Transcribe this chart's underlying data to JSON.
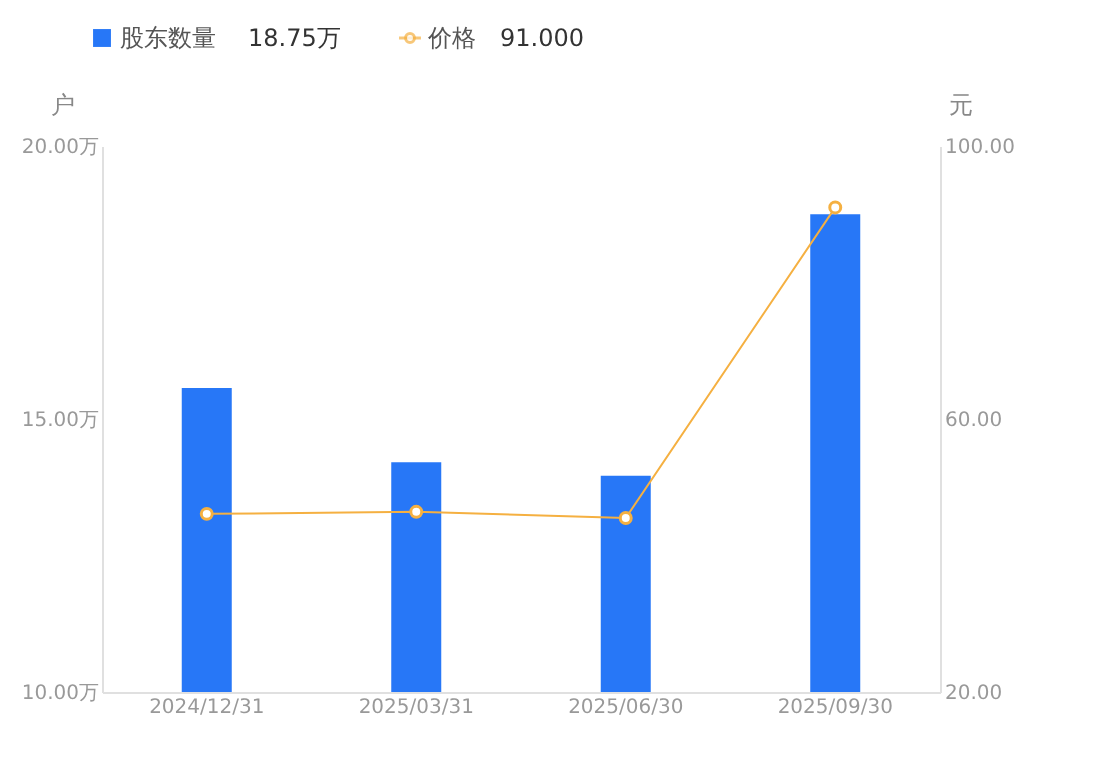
{
  "chart_data": {
    "type": "bar",
    "categories": [
      "2024/12/31",
      "2025/03/31",
      "2025/06/30",
      "2025/09/30"
    ],
    "series": [
      {
        "name": "股东数量",
        "color": "#2777f7",
        "values": [
          15.57,
          14.21,
          13.96,
          18.75
        ]
      },
      {
        "name": "价格",
        "type": "line",
        "axis": "y2",
        "color": "#f5b041",
        "values": [
          46.1,
          46.4,
          45.5,
          91.0
        ]
      }
    ],
    "annotations": [
      "18.75万",
      "91.000"
    ],
    "marker": "circle",
    "ylabel": "户",
    "y2label": "元",
    "ylim": [
      10,
      20
    ],
    "yticks": [
      {
        "value": 10,
        "label": "10.00万"
      },
      {
        "value": 15,
        "label": "15.00万"
      },
      {
        "value": 20,
        "label": "20.00万"
      }
    ],
    "y2lim": [
      20,
      100
    ],
    "y2ticks": [
      {
        "value": 20,
        "label": "20.00"
      },
      {
        "value": 60,
        "label": "60.00"
      },
      {
        "value": 100,
        "label": "100.00"
      }
    ],
    "grid": false,
    "legend": "top left"
  }
}
